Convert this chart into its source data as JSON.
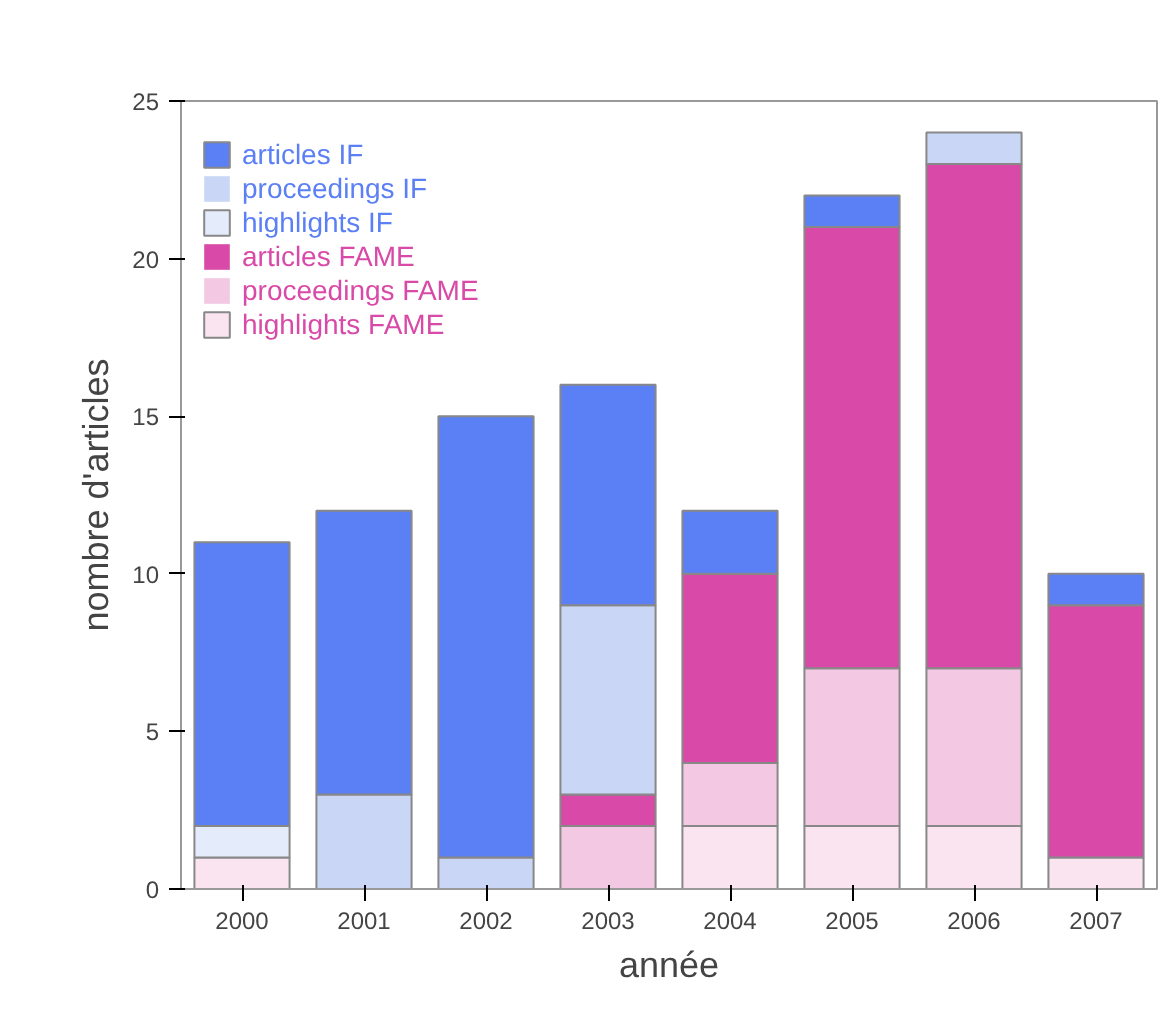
{
  "chart_data": {
    "type": "bar",
    "stacked": true,
    "xlabel": "année",
    "ylabel": "nombre d'articles",
    "categories": [
      "2000",
      "2001",
      "2002",
      "2003",
      "2004",
      "2005",
      "2006",
      "2007"
    ],
    "series": [
      {
        "name": "highlights FAME",
        "color": "#f9e4f0",
        "values": [
          1,
          0,
          0,
          0,
          2,
          2,
          2,
          1
        ]
      },
      {
        "name": "proceedings FAME",
        "color": "#f2c8e2",
        "values": [
          0,
          0,
          0,
          2,
          2,
          5,
          5,
          0
        ]
      },
      {
        "name": "articles FAME",
        "color": "#d94aa8",
        "values": [
          0,
          0,
          0,
          1,
          6,
          14,
          16,
          8
        ]
      },
      {
        "name": "highlights IF",
        "color": "#e4ebfa",
        "values": [
          1,
          0,
          0,
          0,
          0,
          0,
          0,
          0
        ]
      },
      {
        "name": "proceedings IF",
        "color": "#c9d6f5",
        "values": [
          0,
          3,
          1,
          6,
          0,
          0,
          1,
          0
        ]
      },
      {
        "name": "articles IF",
        "color": "#5b7ff5",
        "values": [
          9,
          9,
          14,
          7,
          2,
          1,
          0,
          1
        ]
      }
    ],
    "ylim": [
      0,
      25
    ],
    "yticks": [
      0,
      5,
      10,
      15,
      20,
      25
    ],
    "grid": false,
    "legend": "top left"
  }
}
